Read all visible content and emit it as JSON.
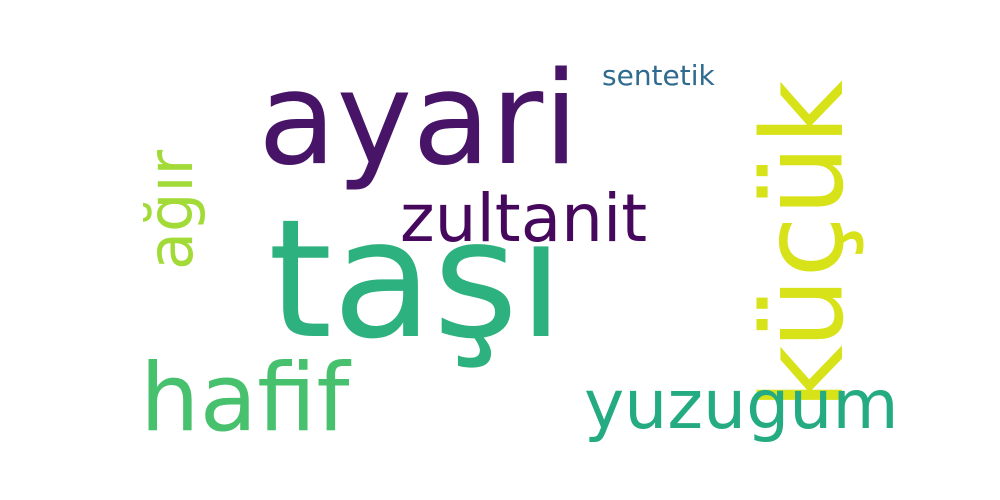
{
  "word_cloud": {
    "background": "#ffffff",
    "words": [
      {
        "text": "taşı",
        "color": "#2db17e"
      },
      {
        "text": "ayari",
        "color": "#481467"
      },
      {
        "text": "küçük",
        "color": "#d8e219",
        "orientation": "vertical"
      },
      {
        "text": "hafif",
        "color": "#48c16e"
      },
      {
        "text": "yuzugum",
        "color": "#25ab82"
      },
      {
        "text": "zultanit",
        "color": "#46085c"
      },
      {
        "text": "ağır",
        "color": "#a2da37",
        "orientation": "vertical"
      },
      {
        "text": "sentetik",
        "color": "#2f6b8e"
      }
    ]
  }
}
